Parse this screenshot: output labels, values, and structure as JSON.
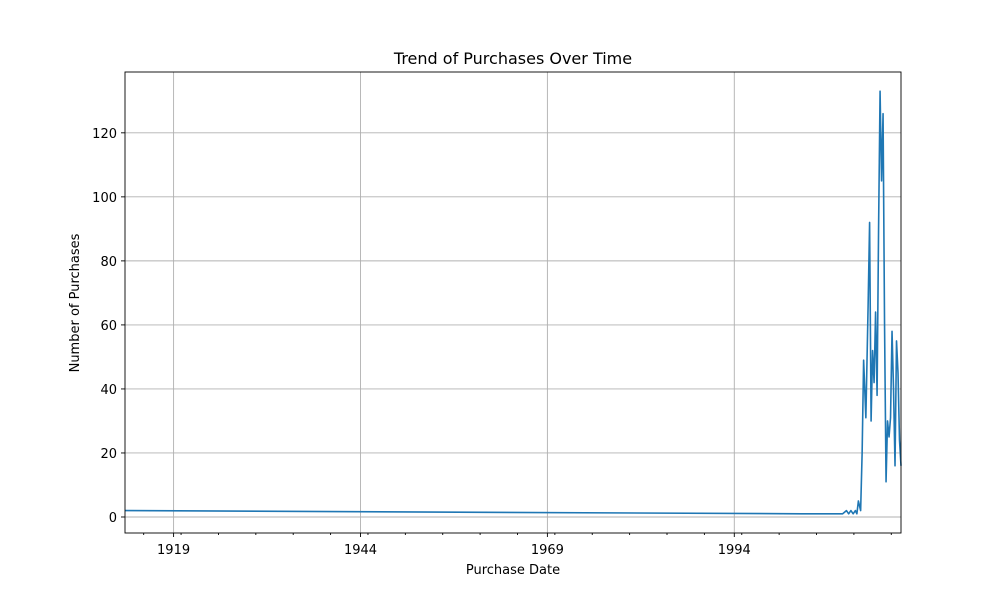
{
  "chart_data": {
    "type": "line",
    "title": "Trend of Purchases Over Time",
    "xlabel": "Purchase Date",
    "ylabel": "Number of Purchases",
    "xlim": [
      1912.5,
      2016.3
    ],
    "ylim": [
      -5,
      139
    ],
    "xticks": [
      1919,
      1944,
      1969,
      1994
    ],
    "yticks": [
      0,
      20,
      40,
      60,
      80,
      100,
      120
    ],
    "grid": true,
    "color": "#1f77b4",
    "series": [
      {
        "x": [
          1912.5,
          2003.0,
          2008.5,
          2009.0,
          2009.3,
          2009.6,
          2009.9,
          2010.2,
          2010.4,
          2010.6,
          2010.9,
          2011.1,
          2011.3,
          2011.6,
          2011.9,
          2012.1,
          2012.3,
          2012.5,
          2012.7,
          2012.9,
          2013.1,
          2013.3,
          2013.5,
          2013.7,
          2013.9,
          2014.1,
          2014.3,
          2014.5,
          2014.7,
          2014.9,
          2015.1,
          2015.3,
          2015.5,
          2015.7,
          2015.9,
          2016.1,
          2016.3
        ],
        "y": [
          2,
          1,
          1,
          2,
          1,
          2,
          1,
          2,
          1,
          5,
          2,
          20,
          49,
          31,
          66,
          92,
          30,
          52,
          42,
          64,
          38,
          90,
          133,
          105,
          126,
          60,
          11,
          30,
          25,
          31,
          58,
          40,
          16,
          55,
          45,
          24,
          16
        ]
      }
    ]
  }
}
